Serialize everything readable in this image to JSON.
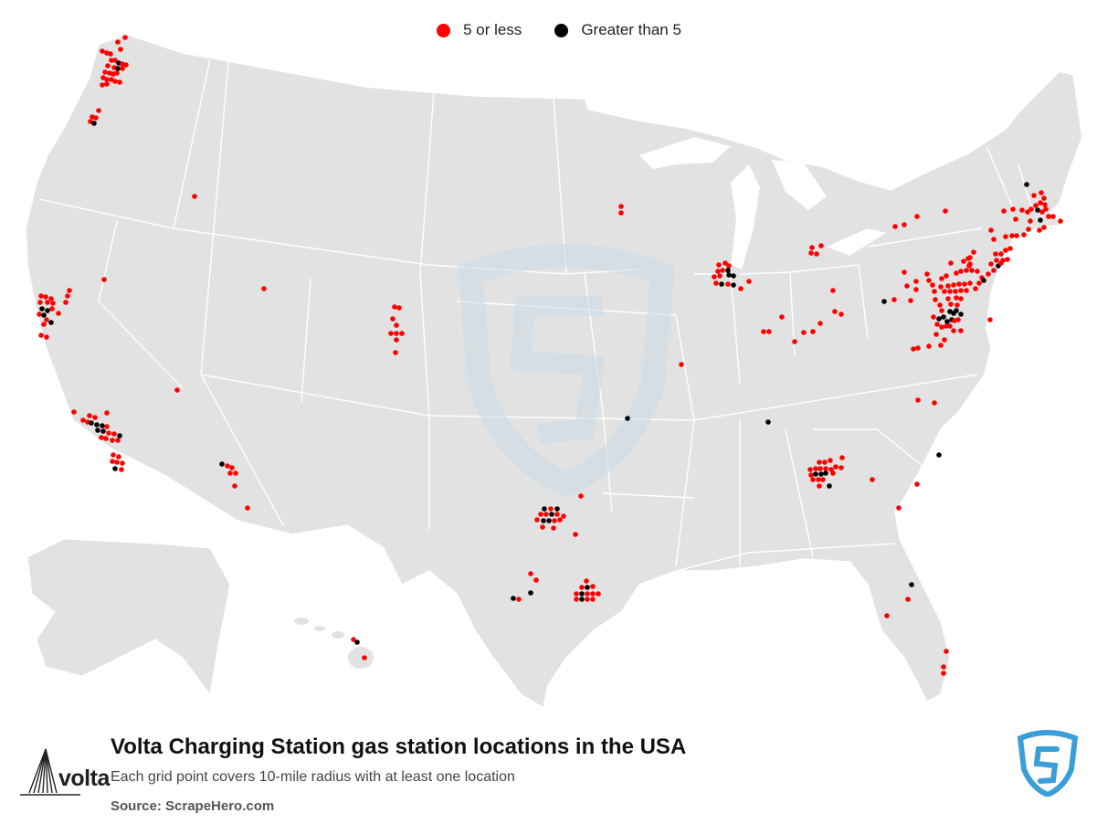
{
  "legend": {
    "small_label": "5 or less",
    "large_label": "Greater than 5",
    "small_color": "#ff0000",
    "large_color": "#000000"
  },
  "footer": {
    "title": "Volta Charging Station gas station locations in the USA",
    "subtitle": "Each grid point covers 10-mile radius with at least one location",
    "source": "Source: ScrapeHero.com"
  },
  "brand": {
    "text": "volta",
    "accent_color": "#3a9fd8"
  },
  "map_style": {
    "land_color": "#e2e2e2",
    "border_color": "#ffffff",
    "watermark_color": "#c9dbe6"
  }
}
